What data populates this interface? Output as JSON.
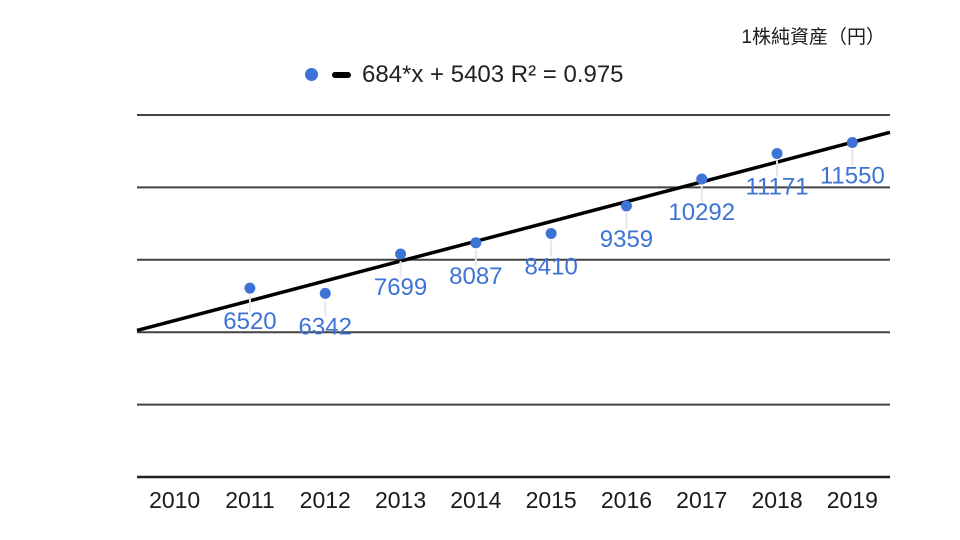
{
  "title": "1株純資産（円）",
  "legend": {
    "label": "684*x + 5403 R² = 0.975"
  },
  "chart_data": {
    "type": "scatter",
    "title": "1株純資産（円）",
    "categories": [
      "2010",
      "2011",
      "2012",
      "2013",
      "2014",
      "2015",
      "2016",
      "2017",
      "2018",
      "2019"
    ],
    "x": [
      2011,
      2012,
      2013,
      2014,
      2015,
      2016,
      2017,
      2018,
      2019
    ],
    "values": [
      6520,
      6342,
      7699,
      8087,
      8410,
      9359,
      10292,
      11171,
      11550
    ],
    "point_labels": [
      "6520",
      "6342",
      "7699",
      "8087",
      "8410",
      "9359",
      "10292",
      "11171",
      "11550"
    ],
    "trendline": {
      "label": "684*x + 5403 R² = 0.975",
      "equation": "684*x + 5403",
      "slope": 684,
      "intercept": 5403,
      "r2": 0.975,
      "x_index_origin": 2010
    },
    "ylim": [
      0,
      12500
    ],
    "gridline_step": 2500,
    "grid": true,
    "y_axis_labels_shown": false,
    "legend_position": "top",
    "xlabel": "",
    "ylabel": "",
    "colors": {
      "series": "#3e73d6",
      "point_label": "#3e73d6",
      "trendline": "#000000",
      "gridline": "#424242",
      "axis_line": "#212121",
      "tick_label": "#1a1a1a",
      "leader_line": "#e3e6ea"
    }
  }
}
